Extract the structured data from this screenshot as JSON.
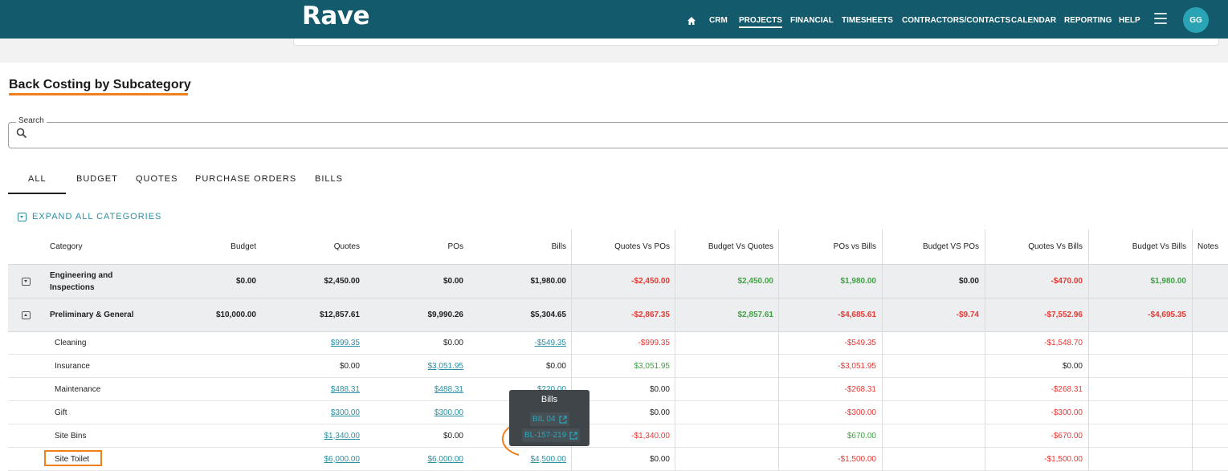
{
  "app": {
    "logo": "Rave",
    "avatar_initials": "GG"
  },
  "nav": [
    "CRM",
    "PROJECTS",
    "FINANCIAL",
    "TIMESHEETS",
    "CONTRACTORS/CONTACTS",
    "CALENDAR",
    "REPORTING",
    "HELP"
  ],
  "nav_active": "PROJECTS",
  "page": {
    "title": "Back Costing by Subcategory"
  },
  "search": {
    "label": "Search",
    "value": ""
  },
  "tabs": [
    "ALL",
    "BUDGET",
    "QUOTES",
    "PURCHASE ORDERS",
    "BILLS"
  ],
  "active_tab": "ALL",
  "expand_all": "EXPAND ALL CATEGORIES",
  "columns": [
    "Category",
    "Budget",
    "Quotes",
    "POs",
    "Bills",
    "Quotes Vs POs",
    "Budget Vs Quotes",
    "POs vs Bills",
    "Budget VS POs",
    "Quotes Vs Bills",
    "Budget Vs Bills",
    "Notes"
  ],
  "categories": [
    {
      "name": "Engineering and Inspections",
      "toggle": "expand",
      "budget": "$0.00",
      "quotes": "$2,450.00",
      "pos": "$0.00",
      "bills": "$1,980.00",
      "quotes_vs_pos": "-$2,450.00",
      "budget_vs_quotes": "$2,450.00",
      "pos_vs_bills": "$1,980.00",
      "budget_vs_pos": "$0.00",
      "quotes_vs_bills": "-$470.00",
      "budget_vs_bills": "$1,980.00"
    },
    {
      "name": "Preliminary & General",
      "toggle": "collapse",
      "budget": "$10,000.00",
      "quotes": "$12,857.61",
      "pos": "$9,990.26",
      "bills": "$5,304.65",
      "quotes_vs_pos": "-$2,867.35",
      "budget_vs_quotes": "$2,857.61",
      "pos_vs_bills": "-$4,685.61",
      "budget_vs_pos": "-$9.74",
      "quotes_vs_bills": "-$7,552.96",
      "budget_vs_bills": "-$4,695.35"
    }
  ],
  "subcategories": [
    {
      "name": "Cleaning",
      "quotes": "$999.35",
      "pos": "$0.00",
      "bills": "-$549.35",
      "quotes_vs_pos": "-$999.35",
      "pos_vs_bills": "-$549.35",
      "quotes_vs_bills": "-$1,548.70"
    },
    {
      "name": "Insurance",
      "quotes": "$0.00",
      "pos": "$3,051.95",
      "bills": "$0.00",
      "quotes_vs_pos": "$3,051.95",
      "pos_vs_bills": "-$3,051.95",
      "quotes_vs_bills": "$0.00"
    },
    {
      "name": "Maintenance",
      "quotes": "$488.31",
      "pos": "$488.31",
      "bills": "$220.00",
      "quotes_vs_pos": "$0.00",
      "pos_vs_bills": "-$268.31",
      "quotes_vs_bills": "-$268.31"
    },
    {
      "name": "Gift",
      "quotes": "$300.00",
      "pos": "$300.00",
      "bills": "",
      "quotes_vs_pos": "$0.00",
      "pos_vs_bills": "-$300.00",
      "quotes_vs_bills": "-$300.00"
    },
    {
      "name": "Site Bins",
      "quotes": "$1,340.00",
      "pos": "$0.00",
      "bills": "",
      "quotes_vs_pos": "-$1,340.00",
      "pos_vs_bills": "$670.00",
      "quotes_vs_bills": "-$670.00"
    },
    {
      "name": "Site Toilet",
      "quotes": "$6,000.00",
      "pos": "$6,000.00",
      "bills": "$4,500.00",
      "quotes_vs_pos": "$0.00",
      "pos_vs_bills": "-$1,500.00",
      "quotes_vs_bills": "-$1,500.00"
    }
  ],
  "tooltip": {
    "title": "Bills",
    "links": [
      "BIL 04",
      "BL-157-219"
    ]
  },
  "colors": {
    "topbar": "#125a6c",
    "accent": "#f07f1c",
    "link": "#2b8fa3",
    "negative": "#e53935",
    "positive": "#43a047"
  }
}
